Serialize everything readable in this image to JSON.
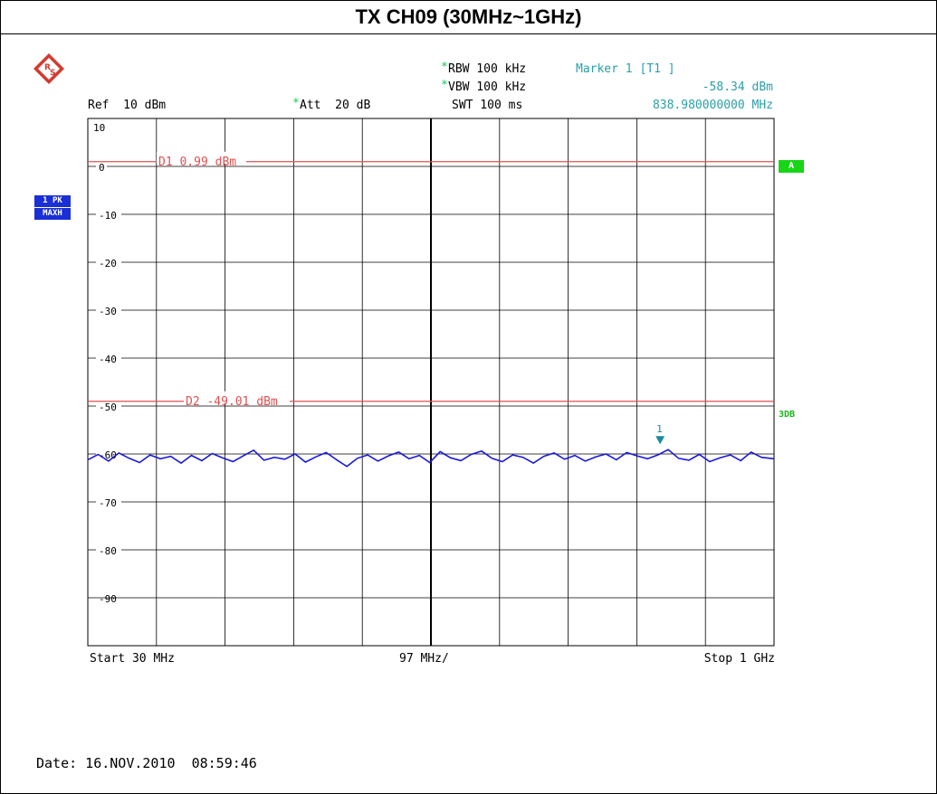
{
  "title": "TX CH09 (30MHz~1GHz)",
  "header": {
    "ref": "Ref  10 dBm",
    "att_star": "*",
    "att": "Att  20 dB",
    "rbw_star": "*",
    "rbw": "RBW 100 kHz",
    "vbw_star": "*",
    "vbw": "VBW 100 kHz",
    "swt": "SWT 100 ms",
    "marker_label": "Marker 1 [T1 ]",
    "marker_level": "-58.34 dBm",
    "marker_freq": "838.980000000 MHz"
  },
  "badges": {
    "trace_1": "1 PK",
    "trace_2": "MAXH",
    "limit_a": "A",
    "limit_3db": "3DB"
  },
  "footer": {
    "start": "Start 30 MHz",
    "span_div": "97 MHz/",
    "stop": "Stop 1 GHz",
    "date": "Date: 16.NOV.2010  08:59:46"
  },
  "colors": {
    "trace": "#1a1ad8",
    "limit_line": "#e05050",
    "grid": "#000000",
    "annotation": "#2aa0a8",
    "marker": "#1a8a9a"
  },
  "chart_data": {
    "type": "line",
    "xlabel": "",
    "ylabel": "",
    "xlim": [
      30,
      1000
    ],
    "ylim": [
      -100,
      10
    ],
    "x_unit": "MHz",
    "y_unit": "dBm",
    "y_ticks": [
      "10",
      "0",
      "-10",
      "-20",
      "-30",
      "-40",
      "-50",
      "-60",
      "-70",
      "-80",
      "-90"
    ],
    "grid": true,
    "limit_lines": [
      {
        "name": "D1 0.99 dBm",
        "value": 0.99
      },
      {
        "name": "D2 -49.01 dBm",
        "value": -49.01
      }
    ],
    "marker": {
      "label": "1",
      "x": 838.98,
      "y": -58.34
    },
    "series": [
      {
        "x": [
          30,
          44.6,
          59.3,
          73.9,
          88.6,
          103.2,
          117.9,
          132.5,
          147.2,
          161.8,
          176.5,
          191.1,
          205.8,
          220.4,
          235.1,
          249.7,
          264.4,
          279,
          293.7,
          308.3,
          323,
          337.6,
          352.3,
          366.9,
          381.6,
          396.2,
          410.9,
          425.5,
          440.2,
          454.8,
          469.5,
          484.1,
          498.8,
          513.4,
          528.1,
          542.7,
          557.4,
          572,
          586.7,
          601.3,
          616,
          630.6,
          645.3,
          659.9,
          674.6,
          689.2,
          703.9,
          718.5,
          733.2,
          747.8,
          762.5,
          777.1,
          791.8,
          806.4,
          821.1,
          835.7,
          850.4,
          865,
          879.7,
          894.3,
          909,
          923.6,
          938.3,
          952.9,
          967.6,
          982.2,
          1000
        ],
        "values": [
          -61.2,
          -60.1,
          -61.5,
          -59.8,
          -60.9,
          -61.8,
          -60.2,
          -61.0,
          -60.5,
          -61.9,
          -60.3,
          -61.4,
          -59.9,
          -60.8,
          -61.6,
          -60.4,
          -59.2,
          -61.3,
          -60.7,
          -61.1,
          -60.0,
          -61.7,
          -60.6,
          -59.7,
          -61.2,
          -62.6,
          -60.9,
          -60.2,
          -61.5,
          -60.4,
          -59.6,
          -61.0,
          -60.3,
          -61.8,
          -59.5,
          -60.8,
          -61.4,
          -60.1,
          -59.4,
          -60.9,
          -61.6,
          -60.2,
          -60.7,
          -61.9,
          -60.5,
          -59.8,
          -61.1,
          -60.3,
          -61.5,
          -60.6,
          -60.0,
          -61.2,
          -59.7,
          -60.4,
          -61.0,
          -60.2,
          -59.1,
          -60.9,
          -61.3,
          -60.1,
          -61.6,
          -60.8,
          -60.2,
          -61.4,
          -59.6,
          -60.7,
          -61.0
        ]
      }
    ]
  }
}
